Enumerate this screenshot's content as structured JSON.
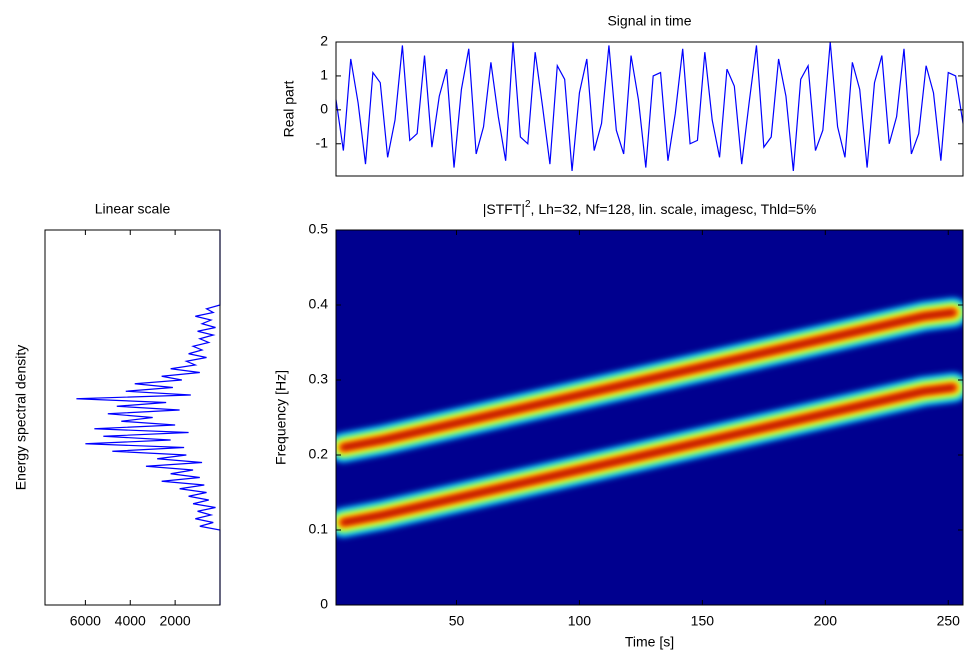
{
  "chart_data": [
    {
      "type": "line",
      "title": "Signal in time",
      "ylabel": "Real part",
      "x": [
        1,
        4,
        7,
        10,
        13,
        16,
        19,
        22,
        25,
        28,
        31,
        34,
        37,
        40,
        43,
        46,
        49,
        52,
        55,
        58,
        61,
        64,
        67,
        70,
        73,
        76,
        79,
        82,
        85,
        88,
        91,
        94,
        97,
        100,
        103,
        106,
        109,
        112,
        115,
        118,
        121,
        124,
        127,
        130,
        133,
        136,
        139,
        142,
        145,
        148,
        151,
        154,
        157,
        160,
        163,
        166,
        169,
        172,
        175,
        178,
        181,
        184,
        187,
        190,
        193,
        196,
        199,
        202,
        205,
        208,
        211,
        214,
        217,
        220,
        223,
        226,
        229,
        232,
        235,
        238,
        241,
        244,
        247,
        250,
        253,
        256
      ],
      "series": [
        {
          "color": "#0000ff",
          "values": [
            0.3,
            -1.2,
            1.5,
            0.2,
            -1.6,
            1.1,
            0.8,
            -1.4,
            -0.3,
            1.9,
            -0.9,
            -0.7,
            1.6,
            -1.1,
            0.4,
            1.2,
            -1.7,
            0.6,
            1.8,
            -1.3,
            -0.5,
            1.4,
            -0.2,
            -1.5,
            2.0,
            -0.8,
            -1.0,
            1.7,
            0.1,
            -1.6,
            1.3,
            0.9,
            -1.8,
            0.5,
            1.5,
            -1.2,
            -0.4,
            1.9,
            -0.6,
            -1.3,
            1.6,
            0.3,
            -1.7,
            1.0,
            1.1,
            -1.5,
            -0.1,
            1.8,
            -1.0,
            -0.9,
            1.7,
            -0.3,
            -1.4,
            1.2,
            0.7,
            -1.6,
            0.2,
            1.9,
            -1.1,
            -0.8,
            1.5,
            0.4,
            -1.8,
            0.9,
            1.3,
            -1.2,
            -0.6,
            2.0,
            -0.5,
            -1.4,
            1.4,
            0.6,
            -1.7,
            0.8,
            1.6,
            -1.0,
            -0.2,
            1.8,
            -1.3,
            -0.7,
            1.3,
            0.5,
            -1.5,
            1.1,
            1.0,
            -0.4
          ]
        }
      ],
      "xlim": [
        1,
        256
      ],
      "ylim": [
        -1.95,
        2
      ],
      "yticks": [
        -1,
        0,
        1,
        2
      ]
    },
    {
      "type": "spectrogram",
      "title": [
        "|STFT|",
        "2",
        ", Lh=32, Nf=128, lin. scale, imagesc, Thld=5%"
      ],
      "xlabel": "Time [s]",
      "ylabel": "Frequency [Hz]",
      "background": "#00008f",
      "colormap": [
        "#00b4ff",
        "#80ff80",
        "#ffff00",
        "#ff4000",
        "#a00000"
      ],
      "series": [
        {
          "x": [
            4,
            20,
            240,
            252
          ],
          "values": [
            0.11,
            0.12,
            0.285,
            0.29
          ]
        },
        {
          "x": [
            4,
            20,
            240,
            252
          ],
          "values": [
            0.21,
            0.22,
            0.385,
            0.39
          ]
        }
      ],
      "xlim": [
        1,
        256
      ],
      "ylim": [
        0,
        0.5
      ],
      "xticks": [
        50,
        100,
        150,
        200,
        250
      ],
      "yticks": [
        0,
        0.1,
        0.2,
        0.3,
        0.4,
        0.5
      ]
    },
    {
      "type": "spectrum",
      "title": "Linear scale",
      "ylabel": "Energy spectral density",
      "x": [
        0,
        0.1,
        0.105,
        0.11,
        0.115,
        0.12,
        0.125,
        0.13,
        0.135,
        0.14,
        0.145,
        0.15,
        0.155,
        0.16,
        0.165,
        0.17,
        0.175,
        0.18,
        0.185,
        0.19,
        0.195,
        0.2,
        0.205,
        0.21,
        0.215,
        0.22,
        0.225,
        0.23,
        0.235,
        0.24,
        0.245,
        0.25,
        0.255,
        0.26,
        0.265,
        0.27,
        0.275,
        0.28,
        0.285,
        0.29,
        0.295,
        0.3,
        0.305,
        0.31,
        0.315,
        0.32,
        0.325,
        0.33,
        0.335,
        0.34,
        0.345,
        0.35,
        0.355,
        0.36,
        0.365,
        0.37,
        0.375,
        0.38,
        0.385,
        0.39,
        0.395,
        0.4,
        0.5
      ],
      "series": [
        {
          "color": "#0000ff",
          "values": [
            0,
            0,
            900,
            300,
            1100,
            400,
            1000,
            200,
            1200,
            500,
            1400,
            600,
            1800,
            700,
            2600,
            900,
            2200,
            1200,
            3300,
            800,
            2800,
            1500,
            4800,
            1600,
            6000,
            2200,
            5200,
            1400,
            5600,
            2000,
            4400,
            3000,
            5000,
            1800,
            4600,
            2400,
            6400,
            1300,
            4200,
            2100,
            3800,
            1700,
            2600,
            900,
            2200,
            1100,
            1500,
            600,
            1400,
            800,
            1200,
            500,
            900,
            300,
            1000,
            200,
            800,
            400,
            1100,
            300,
            600,
            0,
            0
          ]
        }
      ],
      "xlim": [
        7800,
        0
      ],
      "ylim": [
        0,
        0.5
      ],
      "xticks": [
        6000,
        4000,
        2000
      ]
    }
  ]
}
